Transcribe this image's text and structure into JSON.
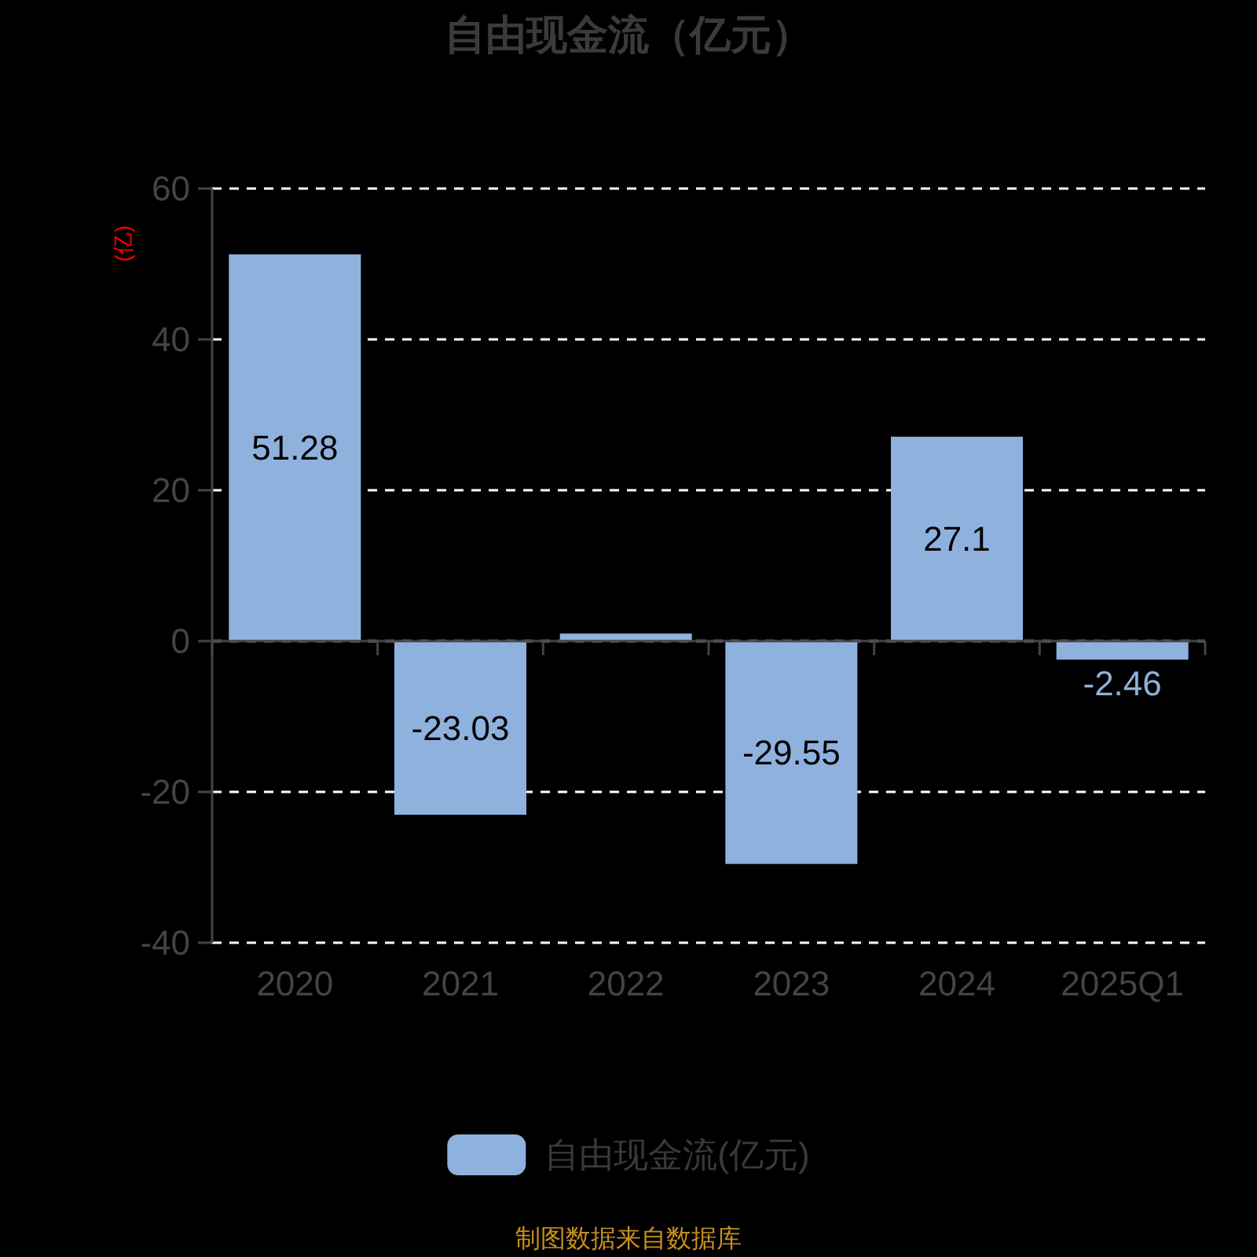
{
  "chart_data": {
    "type": "bar",
    "title": "自由现金流（亿元）",
    "ylabel": "(亿)",
    "categories": [
      "2020",
      "2021",
      "2022",
      "2023",
      "2024",
      "2025Q1"
    ],
    "series": [
      {
        "name": "自由现金流(亿元)",
        "color": "#8fb1de",
        "values": [
          51.28,
          -23.03,
          1,
          -29.55,
          27.1,
          -2.46
        ],
        "value_labels": [
          "51.28",
          "-23.03",
          null,
          "-29.55",
          "27.1",
          "-2.46"
        ]
      }
    ],
    "ylim": [
      -40,
      60
    ],
    "yticks": [
      -40,
      -20,
      0,
      20,
      40,
      60
    ],
    "grid": "y",
    "legend": "bottom",
    "annotations": [
      "制图数据来自数据库"
    ]
  }
}
